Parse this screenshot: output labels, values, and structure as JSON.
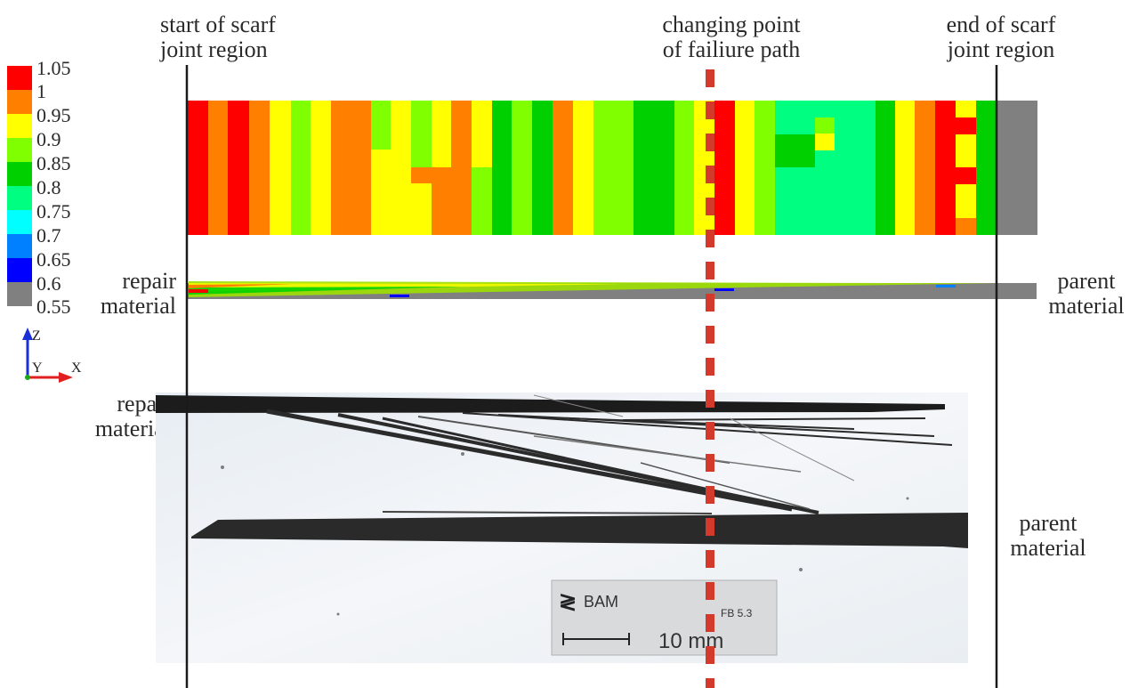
{
  "labels": {
    "start": [
      "start of scarf",
      "joint region"
    ],
    "change": [
      "changing point",
      "of failiure path"
    ],
    "end": [
      "end of scarf",
      "joint region"
    ],
    "repair_top": [
      "repair",
      "material"
    ],
    "parent_top": [
      "parent",
      "material"
    ],
    "repair_photo": [
      "repair",
      "material"
    ],
    "parent_photo": [
      "parent",
      "material"
    ]
  },
  "legend": {
    "levels": [
      {
        "label": "1.05",
        "color": "#ff0000"
      },
      {
        "label": "1",
        "color": "#ff8000"
      },
      {
        "label": "0.95",
        "color": "#ffff00"
      },
      {
        "label": "0.9",
        "color": "#80ff00"
      },
      {
        "label": "0.85",
        "color": "#00d000"
      },
      {
        "label": "0.8",
        "color": "#00ff80"
      },
      {
        "label": "0.75",
        "color": "#00ffff"
      },
      {
        "label": "0.7",
        "color": "#0080ff"
      },
      {
        "label": "0.65",
        "color": "#0000ff"
      },
      {
        "label": "0.6",
        "color": "#808080"
      },
      {
        "label": "0.55",
        "color": ""
      }
    ]
  },
  "axes": {
    "z": "Z",
    "y": "Y",
    "x": "X"
  },
  "photo": {
    "logo": "BAM",
    "code": "FB 5.3",
    "scale": "10 mm"
  }
}
